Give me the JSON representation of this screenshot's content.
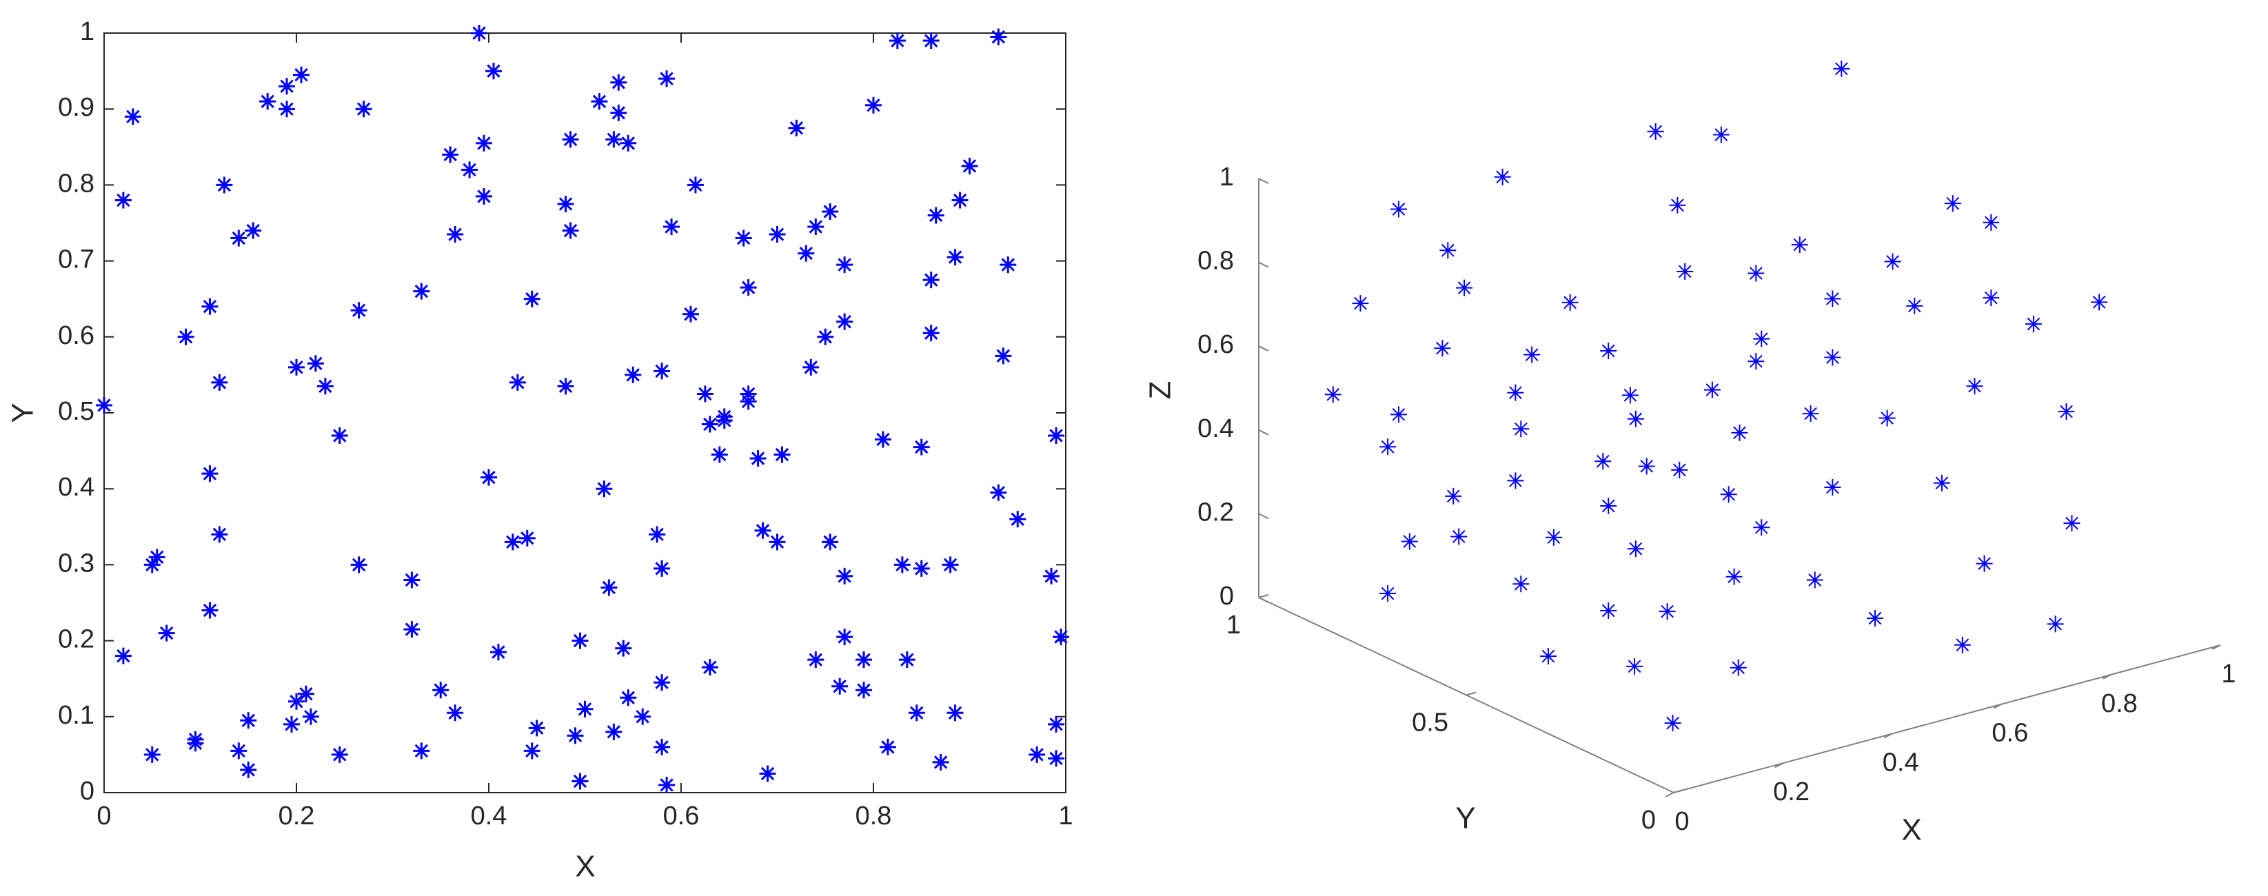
{
  "chart_data": [
    {
      "type": "scatter",
      "xlabel": "X",
      "ylabel": "Y",
      "color": "#0000ff",
      "xlim": [
        0,
        1
      ],
      "ylim": [
        0,
        1
      ],
      "xticks": [
        0,
        0.2,
        0.4,
        0.6,
        0.8,
        1
      ],
      "yticks": [
        0,
        0.1,
        0.2,
        0.3,
        0.4,
        0.5,
        0.6,
        0.7,
        0.8,
        0.9,
        1
      ],
      "x": [
        0.0,
        0.02,
        0.03,
        0.02,
        0.05,
        0.055,
        0.05,
        0.065,
        0.085,
        0.095,
        0.095,
        0.11,
        0.11,
        0.11,
        0.12,
        0.12,
        0.125,
        0.14,
        0.155,
        0.14,
        0.15,
        0.15,
        0.17,
        0.19,
        0.19,
        0.205,
        0.195,
        0.2,
        0.21,
        0.215,
        0.2,
        0.22,
        0.23,
        0.245,
        0.245,
        0.265,
        0.265,
        0.27,
        0.32,
        0.32,
        0.33,
        0.33,
        0.35,
        0.36,
        0.365,
        0.365,
        0.38,
        0.39,
        0.395,
        0.395,
        0.4,
        0.405,
        0.41,
        0.425,
        0.43,
        0.44,
        0.445,
        0.445,
        0.45,
        0.48,
        0.48,
        0.485,
        0.485,
        0.49,
        0.495,
        0.495,
        0.5,
        0.515,
        0.52,
        0.525,
        0.53,
        0.535,
        0.535,
        0.53,
        0.54,
        0.545,
        0.545,
        0.55,
        0.56,
        0.575,
        0.58,
        0.58,
        0.58,
        0.58,
        0.585,
        0.585,
        0.59,
        0.61,
        0.615,
        0.625,
        0.63,
        0.63,
        0.64,
        0.645,
        0.645,
        0.665,
        0.67,
        0.67,
        0.67,
        0.68,
        0.685,
        0.69,
        0.7,
        0.7,
        0.705,
        0.72,
        0.73,
        0.735,
        0.74,
        0.74,
        0.75,
        0.755,
        0.755,
        0.765,
        0.77,
        0.77,
        0.77,
        0.77,
        0.79,
        0.79,
        0.8,
        0.81,
        0.815,
        0.825,
        0.83,
        0.835,
        0.845,
        0.85,
        0.85,
        0.86,
        0.86,
        0.86,
        0.865,
        0.87,
        0.88,
        0.885,
        0.885,
        0.89,
        0.9,
        0.93,
        0.93,
        0.935,
        0.94,
        0.95,
        0.97,
        0.985,
        0.99,
        0.99,
        0.995,
        0.99
      ],
      "values": [
        0.51,
        0.78,
        0.89,
        0.18,
        0.3,
        0.31,
        0.05,
        0.21,
        0.6,
        0.07,
        0.065,
        0.64,
        0.42,
        0.24,
        0.54,
        0.34,
        0.8,
        0.73,
        0.74,
        0.055,
        0.095,
        0.03,
        0.91,
        0.9,
        0.93,
        0.945,
        0.09,
        0.12,
        0.13,
        0.1,
        0.56,
        0.565,
        0.535,
        0.47,
        0.05,
        0.635,
        0.3,
        0.9,
        0.28,
        0.215,
        0.66,
        0.055,
        0.135,
        0.84,
        0.735,
        0.105,
        0.82,
        1.0,
        0.855,
        0.785,
        0.415,
        0.95,
        0.185,
        0.33,
        0.54,
        0.335,
        0.65,
        0.055,
        0.085,
        0.775,
        0.535,
        0.86,
        0.74,
        0.075,
        0.2,
        0.015,
        0.11,
        0.91,
        0.4,
        0.27,
        0.86,
        0.935,
        0.895,
        0.08,
        0.19,
        0.855,
        0.125,
        0.55,
        0.1,
        0.34,
        0.555,
        0.295,
        0.145,
        0.06,
        0.94,
        0.01,
        0.745,
        0.63,
        0.8,
        0.525,
        0.485,
        0.165,
        0.445,
        0.495,
        0.49,
        0.73,
        0.665,
        0.525,
        0.515,
        0.44,
        0.345,
        0.025,
        0.735,
        0.33,
        0.445,
        0.875,
        0.71,
        0.56,
        0.745,
        0.175,
        0.6,
        0.765,
        0.33,
        0.14,
        0.695,
        0.62,
        0.285,
        0.205,
        0.175,
        0.135,
        0.905,
        0.465,
        0.06,
        0.99,
        0.3,
        0.175,
        0.105,
        0.295,
        0.455,
        0.99,
        0.675,
        0.605,
        0.76,
        0.04,
        0.3,
        0.105,
        0.705,
        0.78,
        0.825,
        0.995,
        0.395,
        0.575,
        0.695,
        0.36,
        0.05,
        0.285,
        0.09,
        0.045,
        0.205,
        0.47
      ]
    },
    {
      "type": "scatter3d",
      "xlabel": "X",
      "ylabel": "Y",
      "zlabel": "Z",
      "color": "#0000ff",
      "xlim": [
        0,
        1
      ],
      "ylim": [
        0,
        1
      ],
      "zlim": [
        0,
        1
      ],
      "xticks": [
        0,
        0.2,
        0.4,
        0.6,
        0.8,
        1
      ],
      "yticks": [
        0,
        0.5,
        1
      ],
      "zticks": [
        0,
        0.2,
        0.4,
        0.6,
        0.8,
        1
      ],
      "x": [
        0.99,
        0.65,
        0.77,
        0.37,
        0.69,
        0.18,
        0.27,
        0.3,
        0.19,
        0.11,
        0.93,
        0.89,
        0.96,
        0.78,
        0.61,
        0.53,
        0.4,
        0.54,
        0.26,
        0.12,
        0.26,
        0.09,
        0.3,
        0.67,
        0.82,
        0.96,
        0.81,
        0.93,
        0.87,
        0.67,
        0.53,
        0.45,
        0.63,
        0.77,
        0.5,
        0.06,
        0.18,
        0.1,
        0.31,
        0.25,
        0.33,
        0.39,
        0.48,
        0.26,
        0.16,
        0.28,
        0.09,
        0.16,
        0.31,
        0.54,
        0.67,
        0.87,
        0.88,
        0.52,
        0.72,
        0.85,
        0.68,
        0.41,
        0.49,
        0.14,
        0.26,
        0.08,
        0.27,
        0.15,
        0.1,
        0.29,
        0.2,
        0.15,
        0.16
      ],
      "y": [
        0.9,
        0.9,
        0.9,
        0.9,
        0.9,
        0.9,
        0.9,
        0.9,
        0.5,
        0.9,
        0.2,
        0.5,
        0.5,
        0.5,
        0.5,
        0.5,
        0.5,
        0.5,
        0.5,
        0.5,
        0.9,
        0.5,
        0.5,
        0.5,
        0.5,
        0.5,
        0.2,
        0.5,
        0.2,
        0.5,
        0.5,
        0.5,
        0.5,
        0.5,
        0.5,
        0.9,
        0.9,
        0.5,
        0.5,
        0.5,
        0.5,
        0.5,
        0.5,
        0.5,
        0.9,
        0.9,
        0.5,
        0.5,
        0.5,
        0.5,
        0.5,
        0.5,
        0.2,
        0.2,
        0.2,
        0.2,
        0.2,
        0.2,
        0.5,
        0.2,
        0.5,
        0.2,
        0.2,
        0.5,
        0.5,
        0.9,
        0.9,
        0.2,
        0.9
      ],
      "z": [
        0.96,
        0.93,
        0.88,
        0.92,
        0.74,
        0.91,
        0.78,
        0.68,
        0.87,
        0.71,
        0.75,
        0.86,
        0.79,
        0.76,
        0.86,
        0.82,
        0.87,
        0.66,
        0.73,
        0.77,
        0.55,
        0.69,
        0.61,
        0.71,
        0.64,
        0.61,
        0.74,
        0.41,
        0.51,
        0.57,
        0.61,
        0.57,
        0.45,
        0.39,
        0.45,
        0.51,
        0.42,
        0.6,
        0.55,
        0.47,
        0.43,
        0.4,
        0.31,
        0.36,
        0.35,
        0.19,
        0.48,
        0.32,
        0.24,
        0.21,
        0.26,
        0.2,
        0.24,
        0.14,
        0.2,
        0.01,
        0.02,
        0.27,
        0.11,
        0.29,
        0.11,
        0.18,
        0.11,
        0.04,
        0.23,
        0.09,
        0.11,
        0.02,
        0
      ]
    }
  ]
}
